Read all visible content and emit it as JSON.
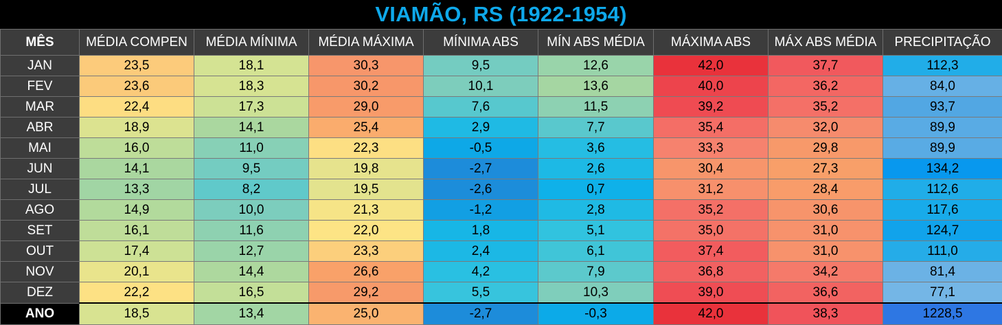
{
  "title": "VIAMÃO, RS (1922-1954)",
  "chart_data": {
    "type": "table",
    "title": "VIAMÃO, RS (1922-1954)",
    "columns": [
      "MÊS",
      "MÉDIA COMPEN",
      "MÉDIA MÍNIMA",
      "MÉDIA MÁXIMA",
      "MÍNIMA ABS",
      "MÍN ABS MÉDIA",
      "MÁXIMA ABS",
      "MÁX ABS MÉDIA",
      "PRECIPITAÇÃO"
    ],
    "rows": [
      {
        "label": "JAN",
        "values": [
          "23,5",
          "18,1",
          "30,3",
          "9,5",
          "12,6",
          "42,0",
          "37,7",
          "112,3"
        ]
      },
      {
        "label": "FEV",
        "values": [
          "23,6",
          "18,3",
          "30,2",
          "10,1",
          "13,6",
          "40,0",
          "36,2",
          "84,0"
        ]
      },
      {
        "label": "MAR",
        "values": [
          "22,4",
          "17,3",
          "29,0",
          "7,6",
          "11,5",
          "39,2",
          "35,2",
          "93,7"
        ]
      },
      {
        "label": "ABR",
        "values": [
          "18,9",
          "14,1",
          "25,4",
          "2,9",
          "7,7",
          "35,4",
          "32,0",
          "89,9"
        ]
      },
      {
        "label": "MAI",
        "values": [
          "16,0",
          "11,0",
          "22,3",
          "-0,5",
          "3,6",
          "33,3",
          "29,8",
          "89,9"
        ]
      },
      {
        "label": "JUN",
        "values": [
          "14,1",
          "9,5",
          "19,8",
          "-2,7",
          "2,6",
          "30,4",
          "27,3",
          "134,2"
        ]
      },
      {
        "label": "JUL",
        "values": [
          "13,3",
          "8,2",
          "19,5",
          "-2,6",
          "0,7",
          "31,2",
          "28,4",
          "112,6"
        ]
      },
      {
        "label": "AGO",
        "values": [
          "14,9",
          "10,0",
          "21,3",
          "-1,2",
          "2,8",
          "35,2",
          "30,6",
          "117,6"
        ]
      },
      {
        "label": "SET",
        "values": [
          "16,1",
          "11,6",
          "22,0",
          "1,8",
          "5,1",
          "35,0",
          "31,0",
          "124,7"
        ]
      },
      {
        "label": "OUT",
        "values": [
          "17,4",
          "12,7",
          "23,3",
          "2,4",
          "6,1",
          "37,4",
          "31,0",
          "111,0"
        ]
      },
      {
        "label": "NOV",
        "values": [
          "20,1",
          "14,4",
          "26,6",
          "4,2",
          "7,9",
          "36,8",
          "34,2",
          "81,4"
        ]
      },
      {
        "label": "DEZ",
        "values": [
          "22,2",
          "16,5",
          "29,2",
          "5,5",
          "10,3",
          "39,0",
          "36,6",
          "77,1"
        ]
      }
    ],
    "annual": {
      "label": "ANO",
      "values": [
        "18,5",
        "13,4",
        "25,0",
        "-2,7",
        "-0,3",
        "42,0",
        "38,3",
        "1228,5"
      ]
    }
  },
  "colors": {
    "title": "#0ea8ea",
    "header_bg": "#3c3c3c",
    "temp_scale": [
      [
        -3,
        "#1f88d8"
      ],
      [
        0,
        "#0aaeea"
      ],
      [
        5,
        "#2fc3e0"
      ],
      [
        10,
        "#7ccdbd"
      ],
      [
        14,
        "#a9d79f"
      ],
      [
        18,
        "#d3e393"
      ],
      [
        22,
        "#fde485"
      ],
      [
        26,
        "#f9a269"
      ],
      [
        30,
        "#f7986a"
      ],
      [
        33,
        "#f6856f"
      ],
      [
        38,
        "#f1565c"
      ],
      [
        42,
        "#e9323b"
      ]
    ],
    "precip_scale": [
      [
        77,
        "#74b6e6"
      ],
      [
        95,
        "#4fa6e3"
      ],
      [
        115,
        "#1aaee9"
      ],
      [
        135,
        "#0797ee"
      ],
      [
        1228,
        "#2e77e3"
      ]
    ]
  }
}
